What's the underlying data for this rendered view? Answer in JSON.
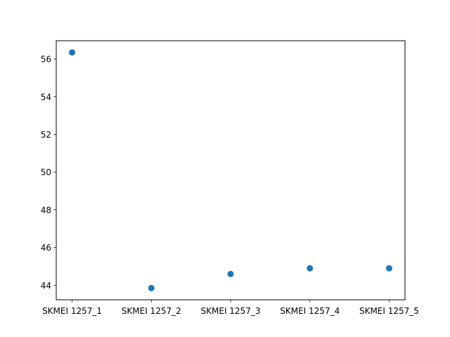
{
  "chart_data": {
    "type": "scatter",
    "title": "",
    "xlabel": "",
    "ylabel": "",
    "categories": [
      "SKMEI 1257_1",
      "SKMEI 1257_2",
      "SKMEI 1257_3",
      "SKMEI 1257_4",
      "SKMEI 1257_5"
    ],
    "values": [
      56.35,
      43.85,
      44.6,
      44.9,
      44.9
    ],
    "ylim": [
      43.23,
      56.97
    ],
    "yticks": [
      44,
      46,
      48,
      50,
      52,
      54,
      56
    ],
    "grid": false,
    "legend": "none",
    "marker_color": "#1f77b4"
  }
}
